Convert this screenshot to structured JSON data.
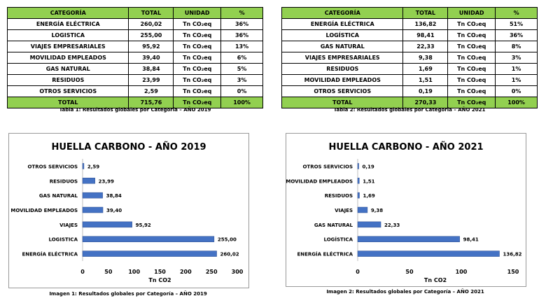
{
  "headers": [
    "CATEGORÍA",
    "TOTAL",
    "UNIDAD",
    "%"
  ],
  "table1": {
    "rows": [
      {
        "cat": "ENERGÍA ELÉCTRICA",
        "total": "260,02",
        "unit": "Tn CO₂eq",
        "pct": "36%"
      },
      {
        "cat": "LOGISTICA",
        "total": "255,00",
        "unit": "Tn CO₂eq",
        "pct": "36%"
      },
      {
        "cat": "VIAJES EMPRESARIALES",
        "total": "95,92",
        "unit": "Tn CO₂eq",
        "pct": "13%"
      },
      {
        "cat": "MOVILIDAD EMPLEADOS",
        "total": "39,40",
        "unit": "Tn CO₂eq",
        "pct": "6%"
      },
      {
        "cat": "GAS NATURAL",
        "total": "38,84",
        "unit": "Tn CO₂eq",
        "pct": "5%"
      },
      {
        "cat": "RESIDUOS",
        "total": "23,99",
        "unit": "Tn CO₂eq",
        "pct": "3%"
      },
      {
        "cat": "OTROS SERVICIOS",
        "total": "2,59",
        "unit": "Tn CO₂eq",
        "pct": "0%"
      }
    ],
    "total": {
      "cat": "TOTAL",
      "total": "715,76",
      "unit": "Tn CO₂eq",
      "pct": "100%"
    },
    "caption": "Tabla 1: Resultados globales por Categoría – AÑO 2019"
  },
  "table2": {
    "rows": [
      {
        "cat": "ENERGÍA ELÉCTRICA",
        "total": "136,82",
        "unit": "Tn CO₂eq",
        "pct": "51%"
      },
      {
        "cat": "LOGÍSTICA",
        "total": "98,41",
        "unit": "Tn CO₂eq",
        "pct": "36%"
      },
      {
        "cat": "GAS NATURAL",
        "total": "22,33",
        "unit": "Tn CO₂eq",
        "pct": "8%"
      },
      {
        "cat": "VIAJES EMPRESARIALES",
        "total": "9,38",
        "unit": "Tn CO₂eq",
        "pct": "3%"
      },
      {
        "cat": "RESIDUOS",
        "total": "1,69",
        "unit": "Tn CO₂eq",
        "pct": "1%"
      },
      {
        "cat": "MOVILIDAD EMPLEADOS",
        "total": "1,51",
        "unit": "Tn CO₂eq",
        "pct": "1%"
      },
      {
        "cat": "OTROS SERVICIOS",
        "total": "0,19",
        "unit": "Tn CO₂eq",
        "pct": "0%"
      }
    ],
    "total": {
      "cat": "TOTAL",
      "total": "270,33",
      "unit": "Tn CO₂eq",
      "pct": "100%"
    },
    "caption": "Tabla 2: Resultados globales por Categoría – AÑO 2021"
  },
  "colors": {
    "header_green": "#92d050",
    "bar_blue": "#4472c4"
  },
  "chart_data": [
    {
      "type": "bar",
      "orientation": "horizontal",
      "title": "HUELLA CARBONO - AÑO 2019",
      "xlabel": "Tn CO2",
      "ylabel": "",
      "categories": [
        "OTROS SERVICIOS",
        "RESIDUOS",
        "GAS NATURAL",
        "MOVILIDAD EMPLEADOS",
        "VIAJES",
        "LOGISTICA",
        "ENERGÍA ELÉCTRICA"
      ],
      "values": [
        2.59,
        23.99,
        38.84,
        39.4,
        95.92,
        255.0,
        260.02
      ],
      "labels": [
        "2,59",
        "23,99",
        "38,84",
        "39,40",
        "95,92",
        "255,00",
        "260,02"
      ],
      "xlim": [
        0,
        300
      ],
      "xticks": [
        0,
        50,
        100,
        150,
        200,
        250,
        300
      ],
      "grid": false,
      "caption": "Imagen 1: Resultados globales por Categoría – AÑO 2019"
    },
    {
      "type": "bar",
      "orientation": "horizontal",
      "title": "HUELLA CARBONO - AÑO 2021",
      "xlabel": "Tn CO2",
      "ylabel": "",
      "categories": [
        "OTROS SERVICIOS",
        "MOVILIDAD EMPLEADOS",
        "RESIDUOS",
        "VIAJES",
        "GAS NATURAL",
        "LOGÍSTICA",
        "ENERGÍA ELÉCTRICA"
      ],
      "values": [
        0.19,
        1.51,
        1.69,
        9.38,
        22.33,
        98.41,
        136.82
      ],
      "labels": [
        "0,19",
        "1,51",
        "1,69",
        "9,38",
        "22,33",
        "98,41",
        "136,82"
      ],
      "xlim": [
        0,
        150
      ],
      "xticks": [
        0,
        50,
        100,
        150
      ],
      "grid": false,
      "caption": "Imagen 2: Resultados globales por Categoría – AÑO 2021"
    }
  ]
}
